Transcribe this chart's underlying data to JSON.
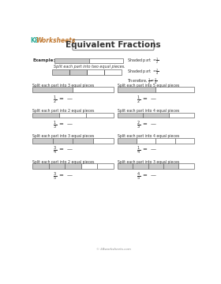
{
  "title": "Equivalent Fractions",
  "logo_k8": "K8",
  "logo_rest": "Worksheets",
  "footer": "© k8worksheets.com",
  "bg_color": "#ffffff",
  "bar_fill_shaded": "#cccccc",
  "bar_fill_white": "#ffffff",
  "bar_edge": "#666666",
  "example_label": "Example:",
  "split_text1": "Split each part into two equal pieces.",
  "exercises": [
    {
      "label": "Split each part into 3 equal pieces",
      "bar_shaded": 1,
      "bar_total": 2,
      "fraction_n": "1",
      "fraction_d": "2",
      "col": 0
    },
    {
      "label": "Split each part into 5 equal pieces",
      "bar_shaded": 1,
      "bar_total": 2,
      "fraction_n": "1",
      "fraction_d": "2",
      "col": 1
    },
    {
      "label": "Split each part into 2 equal pieces",
      "bar_shaded": 1,
      "bar_total": 3,
      "fraction_n": "1",
      "fraction_d": "3",
      "col": 0
    },
    {
      "label": "Split each part into 4 equal pieces",
      "bar_shaded": 2,
      "bar_total": 3,
      "fraction_n": "2",
      "fraction_d": "3",
      "col": 1
    },
    {
      "label": "Split each part into 3 equal pieces",
      "bar_shaded": 3,
      "bar_total": 4,
      "fraction_n": "3",
      "fraction_d": "4",
      "col": 0
    },
    {
      "label": "Split each part into 4 equal pieces",
      "bar_shaded": 1,
      "bar_total": 4,
      "fraction_n": "1",
      "fraction_d": "4",
      "col": 1
    },
    {
      "label": "Split each part into 2 equal pieces",
      "bar_shaded": 3,
      "bar_total": 5,
      "fraction_n": "3",
      "fraction_d": "5",
      "col": 0
    },
    {
      "label": "Split each part into 3 equal pieces",
      "bar_shaded": 4,
      "bar_total": 5,
      "fraction_n": "4",
      "fraction_d": "5",
      "col": 1
    }
  ]
}
